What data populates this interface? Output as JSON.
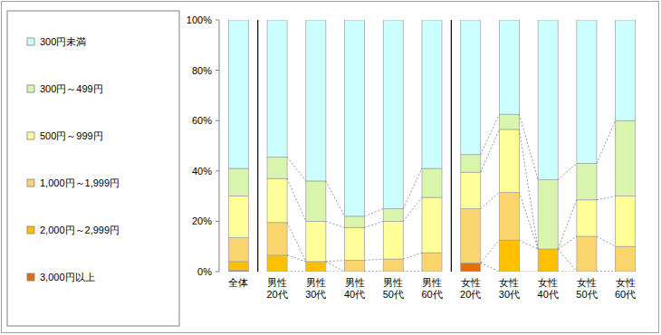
{
  "chart_data": {
    "type": "bar",
    "stacked": true,
    "grid": false,
    "legend": "left",
    "categories": [
      "全体",
      "男性\n20代",
      "男性\n30代",
      "男性\n40代",
      "男性\n50代",
      "男性\n60代",
      "女性\n20代",
      "女性\n30代",
      "女性\n40代",
      "女性\n50代",
      "女性\n60代"
    ],
    "series": [
      {
        "name": "3,000円以上",
        "color": "#e46c0a",
        "values": [
          0.5,
          0,
          0,
          0,
          0,
          0,
          3.5,
          0,
          0,
          0,
          0
        ]
      },
      {
        "name": "2,000円～2,999円",
        "color": "#ffc000",
        "values": [
          3.5,
          6.5,
          4,
          0,
          0,
          0,
          0,
          12.5,
          9,
          0,
          0
        ]
      },
      {
        "name": "1,000円～1,999円",
        "color": "#fad56e",
        "values": [
          9.5,
          13,
          0,
          4.5,
          5,
          7.5,
          21.5,
          19,
          0,
          14,
          10
        ]
      },
      {
        "name": "500円～999円",
        "color": "#ffff99",
        "values": [
          16.5,
          17.5,
          16,
          13,
          15,
          22,
          14.5,
          25,
          0,
          14.5,
          20
        ]
      },
      {
        "name": "300円～499円",
        "color": "#d9f5ad",
        "values": [
          11,
          8.5,
          16,
          4.5,
          5,
          11.5,
          7,
          6,
          27.5,
          14.5,
          30
        ]
      },
      {
        "name": "300円未満",
        "color": "#ccffff",
        "values": [
          59,
          54.5,
          64,
          78,
          75,
          59,
          53.5,
          37.5,
          63.5,
          57,
          40
        ]
      }
    ],
    "ylim": [
      0,
      100
    ],
    "yticks": [
      {
        "value": 0,
        "label": "0%"
      },
      {
        "value": 20,
        "label": "20%"
      },
      {
        "value": 40,
        "label": "40%"
      },
      {
        "value": 60,
        "label": "60%"
      },
      {
        "value": 80,
        "label": "80%"
      },
      {
        "value": 100,
        "label": "100%"
      }
    ]
  }
}
